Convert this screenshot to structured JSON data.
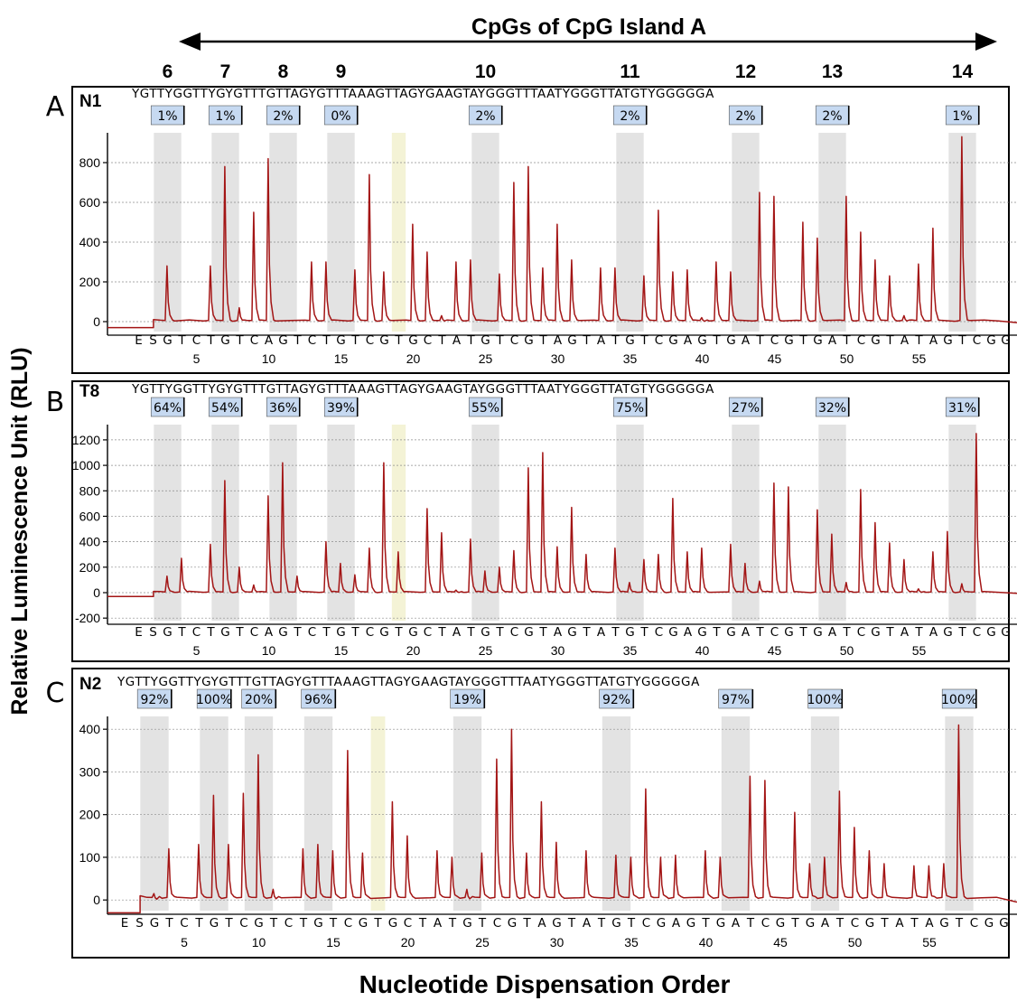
{
  "header": {
    "title": "CpGs of CpG Island A",
    "cpg_numbers": [
      "6",
      "7",
      "8",
      "9",
      "10",
      "11",
      "12",
      "13",
      "14"
    ]
  },
  "axis": {
    "ylabel": "Relative Luminescence Unit (RLU)",
    "xlabel": "Nucleotide Dispensation Order"
  },
  "colors": {
    "trace": "#a31515",
    "cpg_band": "#e3e3e3",
    "control_band": "#f4f3d6",
    "label_box": "#c6d9f1",
    "grid": "#8c8c8c"
  },
  "chart_data": [
    {
      "type": "line",
      "panel_letter": "A",
      "sample": "N1",
      "sequence": "YGTTYGGTTYGYGTTTGTTAGYGTTTAAAGTTAGYGAAGTAYGGGTTTAATYGGGTTATGTYGGGGGA",
      "dispensation": [
        "E",
        "S",
        "G",
        "T",
        "C",
        "T",
        "G",
        "T",
        "C",
        "A",
        "G",
        "T",
        "C",
        "T",
        "G",
        "T",
        "C",
        "G",
        "T",
        "G",
        "C",
        "T",
        "A",
        "T",
        "G",
        "T",
        "C",
        "G",
        "T",
        "A",
        "G",
        "T",
        "A",
        "T",
        "G",
        "T",
        "C",
        "G",
        "A",
        "G",
        "T",
        "G",
        "A",
        "T",
        "C",
        "G",
        "T",
        "G",
        "A",
        "T",
        "C",
        "G",
        "T",
        "A",
        "T",
        "A",
        "G",
        "T",
        "C",
        "G",
        "G"
      ],
      "x_ticks": [
        "5",
        "10",
        "15",
        "20",
        "25",
        "30",
        "35",
        "40",
        "45",
        "50",
        "55"
      ],
      "y_ticks": [
        "0",
        "200",
        "400",
        "600",
        "800"
      ],
      "ylim": [
        -50,
        950
      ],
      "cpg_positions": [
        3,
        7,
        11,
        15,
        25,
        35,
        43,
        49,
        58
      ],
      "control_position": 19,
      "methylation_labels": [
        "1%",
        "1%",
        "2%",
        "0%",
        "2%",
        "2%",
        "2%",
        "2%",
        "1%"
      ],
      "peaks": [
        [
          3,
          280
        ],
        [
          6,
          280
        ],
        [
          7,
          780
        ],
        [
          8,
          70
        ],
        [
          9,
          550
        ],
        [
          10,
          820
        ],
        [
          13,
          300
        ],
        [
          14,
          300
        ],
        [
          16,
          260
        ],
        [
          17,
          740
        ],
        [
          18,
          250
        ],
        [
          20,
          490
        ],
        [
          21,
          350
        ],
        [
          22,
          30
        ],
        [
          23,
          300
        ],
        [
          24,
          310
        ],
        [
          26,
          240
        ],
        [
          27,
          700
        ],
        [
          28,
          780
        ],
        [
          29,
          270
        ],
        [
          30,
          490
        ],
        [
          31,
          310
        ],
        [
          33,
          270
        ],
        [
          34,
          270
        ],
        [
          36,
          230
        ],
        [
          37,
          560
        ],
        [
          38,
          250
        ],
        [
          39,
          260
        ],
        [
          40,
          20
        ],
        [
          41,
          300
        ],
        [
          42,
          250
        ],
        [
          44,
          650
        ],
        [
          45,
          630
        ],
        [
          47,
          500
        ],
        [
          48,
          420
        ],
        [
          50,
          630
        ],
        [
          51,
          450
        ],
        [
          52,
          310
        ],
        [
          53,
          230
        ],
        [
          54,
          30
        ],
        [
          55,
          290
        ],
        [
          56,
          470
        ],
        [
          58,
          930
        ]
      ]
    },
    {
      "type": "line",
      "panel_letter": "B",
      "sample": "T8",
      "sequence": "YGTTYGGTTYGYGTTTGTTAGYGTTTAAAGTTAGYGAAGTAYGGGTTTAATYGGGTTATGTYGGGGGA",
      "dispensation": [
        "E",
        "S",
        "G",
        "T",
        "C",
        "T",
        "G",
        "T",
        "C",
        "A",
        "G",
        "T",
        "C",
        "T",
        "G",
        "T",
        "C",
        "G",
        "T",
        "G",
        "C",
        "T",
        "A",
        "T",
        "G",
        "T",
        "C",
        "G",
        "T",
        "A",
        "G",
        "T",
        "A",
        "T",
        "G",
        "T",
        "C",
        "G",
        "A",
        "G",
        "T",
        "G",
        "A",
        "T",
        "C",
        "G",
        "T",
        "G",
        "A",
        "T",
        "C",
        "G",
        "T",
        "A",
        "T",
        "A",
        "G",
        "T",
        "C",
        "G",
        "G"
      ],
      "x_ticks": [
        "5",
        "10",
        "15",
        "20",
        "25",
        "30",
        "35",
        "40",
        "45",
        "50",
        "55"
      ],
      "y_ticks": [
        "-200",
        "0",
        "200",
        "400",
        "600",
        "800",
        "1000",
        "1200"
      ],
      "ylim": [
        -220,
        1320
      ],
      "cpg_positions": [
        3,
        7,
        11,
        15,
        25,
        35,
        43,
        49,
        58
      ],
      "control_position": 19,
      "methylation_labels": [
        "64%",
        "54%",
        "36%",
        "39%",
        "55%",
        "75%",
        "27%",
        "32%",
        "31%"
      ],
      "peaks": [
        [
          3,
          130
        ],
        [
          4,
          270
        ],
        [
          6,
          380
        ],
        [
          7,
          880
        ],
        [
          8,
          200
        ],
        [
          9,
          60
        ],
        [
          10,
          760
        ],
        [
          11,
          1020
        ],
        [
          12,
          130
        ],
        [
          14,
          400
        ],
        [
          15,
          230
        ],
        [
          16,
          140
        ],
        [
          17,
          350
        ],
        [
          18,
          1020
        ],
        [
          19,
          320
        ],
        [
          21,
          660
        ],
        [
          22,
          470
        ],
        [
          23,
          20
        ],
        [
          24,
          420
        ],
        [
          25,
          170
        ],
        [
          26,
          200
        ],
        [
          27,
          330
        ],
        [
          28,
          980
        ],
        [
          29,
          1100
        ],
        [
          30,
          360
        ],
        [
          31,
          670
        ],
        [
          32,
          300
        ],
        [
          34,
          350
        ],
        [
          35,
          80
        ],
        [
          36,
          260
        ],
        [
          37,
          300
        ],
        [
          38,
          740
        ],
        [
          39,
          320
        ],
        [
          40,
          350
        ],
        [
          42,
          380
        ],
        [
          43,
          230
        ],
        [
          44,
          90
        ],
        [
          45,
          860
        ],
        [
          46,
          830
        ],
        [
          48,
          650
        ],
        [
          49,
          460
        ],
        [
          50,
          80
        ],
        [
          51,
          810
        ],
        [
          52,
          550
        ],
        [
          53,
          390
        ],
        [
          54,
          260
        ],
        [
          55,
          30
        ],
        [
          56,
          320
        ],
        [
          57,
          480
        ],
        [
          58,
          70
        ],
        [
          59,
          1250
        ]
      ]
    },
    {
      "type": "line",
      "panel_letter": "C",
      "sample": "N2",
      "sequence": "YGTTYGGTTYGYGTTTGTTAGYGTTTAAAGTTAGYGAAGTAYGGGTTTAATYGGGTTATGTYGGGGGA",
      "dispensation": [
        "E",
        "S",
        "G",
        "T",
        "C",
        "T",
        "G",
        "T",
        "C",
        "G",
        "T",
        "C",
        "T",
        "G",
        "T",
        "C",
        "G",
        "T",
        "G",
        "C",
        "T",
        "A",
        "T",
        "G",
        "T",
        "C",
        "G",
        "T",
        "A",
        "G",
        "T",
        "A",
        "T",
        "G",
        "T",
        "C",
        "G",
        "A",
        "G",
        "T",
        "G",
        "A",
        "T",
        "C",
        "G",
        "T",
        "G",
        "A",
        "T",
        "C",
        "G",
        "T",
        "A",
        "T",
        "A",
        "G",
        "T",
        "C",
        "G",
        "G"
      ],
      "x_ticks": [
        "5",
        "10",
        "15",
        "20",
        "25",
        "30",
        "35",
        "40",
        "45",
        "50",
        "55"
      ],
      "y_ticks": [
        "0",
        "100",
        "200",
        "300",
        "400"
      ],
      "ylim": [
        -25,
        430
      ],
      "cpg_positions": [
        3,
        7,
        10,
        14,
        24,
        34,
        42,
        48,
        57
      ],
      "control_position": 18,
      "methylation_labels": [
        "92%",
        "100%",
        "20%",
        "96%",
        "19%",
        "92%",
        "97%",
        "100%",
        "100%"
      ],
      "peaks": [
        [
          3,
          15
        ],
        [
          4,
          120
        ],
        [
          6,
          130
        ],
        [
          7,
          245
        ],
        [
          8,
          130
        ],
        [
          9,
          250
        ],
        [
          10,
          340
        ],
        [
          11,
          25
        ],
        [
          13,
          120
        ],
        [
          14,
          130
        ],
        [
          15,
          115
        ],
        [
          16,
          350
        ],
        [
          17,
          110
        ],
        [
          19,
          230
        ],
        [
          20,
          150
        ],
        [
          22,
          115
        ],
        [
          23,
          100
        ],
        [
          24,
          25
        ],
        [
          25,
          110
        ],
        [
          26,
          330
        ],
        [
          27,
          400
        ],
        [
          28,
          110
        ],
        [
          29,
          230
        ],
        [
          30,
          135
        ],
        [
          32,
          115
        ],
        [
          34,
          105
        ],
        [
          35,
          100
        ],
        [
          36,
          260
        ],
        [
          37,
          100
        ],
        [
          38,
          105
        ],
        [
          40,
          115
        ],
        [
          41,
          100
        ],
        [
          43,
          290
        ],
        [
          44,
          280
        ],
        [
          46,
          205
        ],
        [
          47,
          85
        ],
        [
          48,
          100
        ],
        [
          49,
          255
        ],
        [
          50,
          170
        ],
        [
          51,
          115
        ],
        [
          52,
          85
        ],
        [
          54,
          80
        ],
        [
          55,
          80
        ],
        [
          56,
          85
        ],
        [
          57,
          410
        ]
      ]
    }
  ]
}
